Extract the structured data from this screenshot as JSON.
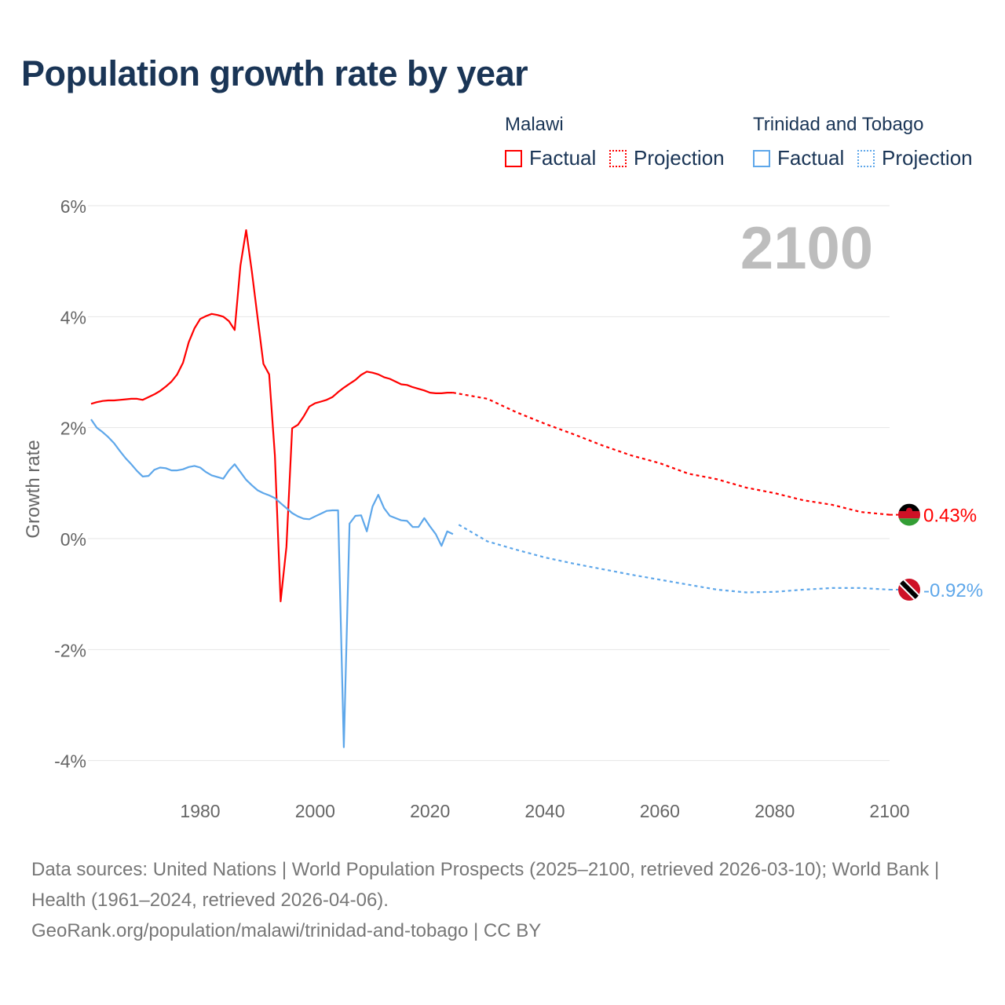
{
  "title": "Population growth rate by year",
  "legend": {
    "groups": [
      {
        "name": "Malawi",
        "factual": "Factual",
        "projection": "Projection",
        "color": "#ff0000"
      },
      {
        "name": "Trinidad and Tobago",
        "factual": "Factual",
        "projection": "Projection",
        "color": "#5ea7ea"
      }
    ]
  },
  "year_label": "2100",
  "footer": {
    "sources": "Data sources: United Nations | World Population Prospects (2025–2100, retrieved 2026-03-10); World Bank | Health (1961–2024, retrieved 2026-04-06).",
    "link": "GeoRank.org/population/malawi/trinidad-and-tobago | CC BY"
  },
  "chart_data": {
    "type": "line",
    "title": "Population growth rate by year",
    "xlabel": "",
    "ylabel": "Growth rate",
    "xlim": [
      1961,
      2100
    ],
    "ylim": [
      -4,
      6
    ],
    "xticks": [
      1980,
      2000,
      2020,
      2040,
      2060,
      2080,
      2100
    ],
    "xtick_labels": [
      "1980",
      "2000",
      "2020",
      "2040",
      "2060",
      "2080",
      "2100"
    ],
    "yticks": [
      6,
      4,
      2,
      0,
      -2,
      -4
    ],
    "ytick_labels": [
      "6%",
      "4%",
      "2%",
      "0%",
      "-2%",
      "-4%"
    ],
    "grid": true,
    "legend_position": "top-right",
    "series": [
      {
        "name": "Malawi Factual",
        "color": "#ff0000",
        "style": "solid",
        "x_start": 1961,
        "values": [
          2.43,
          2.46,
          2.48,
          2.49,
          2.49,
          2.5,
          2.51,
          2.52,
          2.52,
          2.5,
          2.55,
          2.6,
          2.66,
          2.74,
          2.83,
          2.96,
          3.17,
          3.54,
          3.79,
          3.96,
          4.01,
          4.05,
          4.03,
          4.0,
          3.92,
          3.76,
          4.92,
          5.56,
          4.8,
          3.97,
          3.15,
          2.96,
          1.5,
          -1.13,
          -0.15,
          1.99,
          2.05,
          2.2,
          2.38,
          2.44,
          2.47,
          2.5,
          2.55,
          2.64,
          2.72,
          2.79,
          2.86,
          2.95,
          3.01,
          2.99,
          2.96,
          2.91,
          2.88,
          2.83,
          2.78,
          2.77,
          2.73,
          2.7,
          2.67,
          2.63,
          2.62,
          2.62,
          2.63,
          2.63
        ]
      },
      {
        "name": "Malawi Projection",
        "color": "#ff0000",
        "style": "dotted",
        "x": [
          2024,
          2030,
          2035,
          2040,
          2045,
          2050,
          2055,
          2060,
          2065,
          2070,
          2075,
          2080,
          2085,
          2090,
          2095,
          2100
        ],
        "values": [
          2.63,
          2.52,
          2.28,
          2.07,
          1.88,
          1.68,
          1.5,
          1.36,
          1.17,
          1.07,
          0.92,
          0.82,
          0.69,
          0.61,
          0.48,
          0.43
        ]
      },
      {
        "name": "Trinidad and Tobago Factual",
        "color": "#5ea7ea",
        "style": "solid",
        "x_start": 1961,
        "values": [
          2.15,
          2.0,
          1.92,
          1.83,
          1.72,
          1.58,
          1.45,
          1.34,
          1.22,
          1.12,
          1.13,
          1.24,
          1.28,
          1.27,
          1.23,
          1.23,
          1.25,
          1.29,
          1.31,
          1.28,
          1.2,
          1.14,
          1.11,
          1.08,
          1.23,
          1.34,
          1.2,
          1.06,
          0.96,
          0.87,
          0.82,
          0.78,
          0.73,
          0.64,
          0.55,
          0.46,
          0.4,
          0.36,
          0.35,
          0.4,
          0.45,
          0.5,
          0.51,
          0.51,
          -3.76,
          0.27,
          0.41,
          0.42,
          0.13,
          0.58,
          0.79,
          0.55,
          0.41,
          0.37,
          0.33,
          0.32,
          0.21,
          0.21,
          0.37,
          0.22,
          0.08,
          -0.13,
          0.13,
          0.08
        ]
      },
      {
        "name": "Trinidad and Tobago Projection",
        "color": "#5ea7ea",
        "style": "dotted",
        "x": [
          2025,
          2030,
          2035,
          2040,
          2045,
          2050,
          2055,
          2060,
          2065,
          2070,
          2075,
          2080,
          2085,
          2090,
          2095,
          2100
        ],
        "values": [
          0.25,
          -0.05,
          -0.2,
          -0.34,
          -0.45,
          -0.55,
          -0.65,
          -0.74,
          -0.83,
          -0.92,
          -0.97,
          -0.96,
          -0.92,
          -0.89,
          -0.89,
          -0.92
        ]
      }
    ],
    "end_labels": [
      {
        "country": "Malawi",
        "flag": "malawi-flag",
        "value": 0.43,
        "text": "0.43%",
        "color": "#ff0000"
      },
      {
        "country": "Trinidad and Tobago",
        "flag": "trinidad-and-tobago-flag",
        "value": -0.92,
        "text": "-0.92%",
        "color": "#5ea7ea"
      }
    ]
  }
}
